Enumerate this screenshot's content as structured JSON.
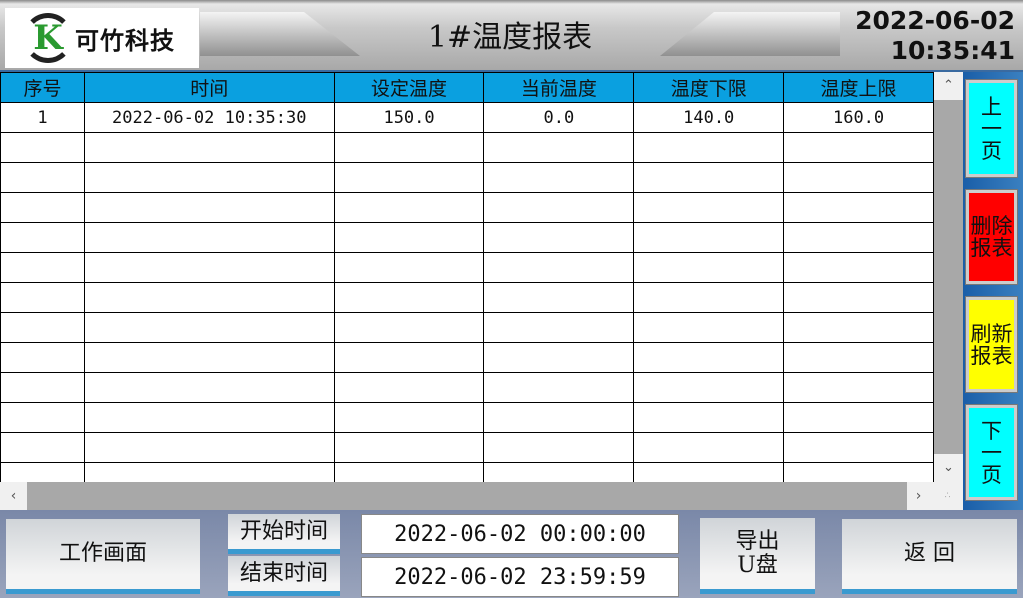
{
  "header": {
    "logo_text": "可竹科技",
    "logo_letter": "K",
    "title": "1#温度报表",
    "date": "2022-06-02",
    "time": "10:35:41"
  },
  "table": {
    "columns": [
      "序号",
      "时间",
      "设定温度",
      "当前温度",
      "温度下限",
      "温度上限"
    ],
    "rows": [
      [
        "1",
        "2022-06-02 10:35:30",
        "150.0",
        "0.0",
        "140.0",
        "160.0"
      ]
    ],
    "empty_rows": 12
  },
  "side_buttons": [
    {
      "label": "上\n一\n页",
      "color": "#00ffff"
    },
    {
      "label": "删除\n报表",
      "color": "#ff0000"
    },
    {
      "label": "刷新\n报表",
      "color": "#ffff00"
    },
    {
      "label": "下\n一\n页",
      "color": "#00ffff"
    }
  ],
  "bottom": {
    "work_screen": "工作画面",
    "start_label": "开始时间",
    "end_label": "结束时间",
    "start_time": "2022-06-02 00:00:00",
    "end_time": "2022-06-02 23:59:59",
    "export": "导出\nU盘",
    "back": "返 回"
  },
  "icons": {
    "scroll_up": "chevron-up-icon",
    "scroll_down": "chevron-down-icon",
    "scroll_left": "chevron-left-icon",
    "scroll_right": "chevron-right-icon"
  }
}
